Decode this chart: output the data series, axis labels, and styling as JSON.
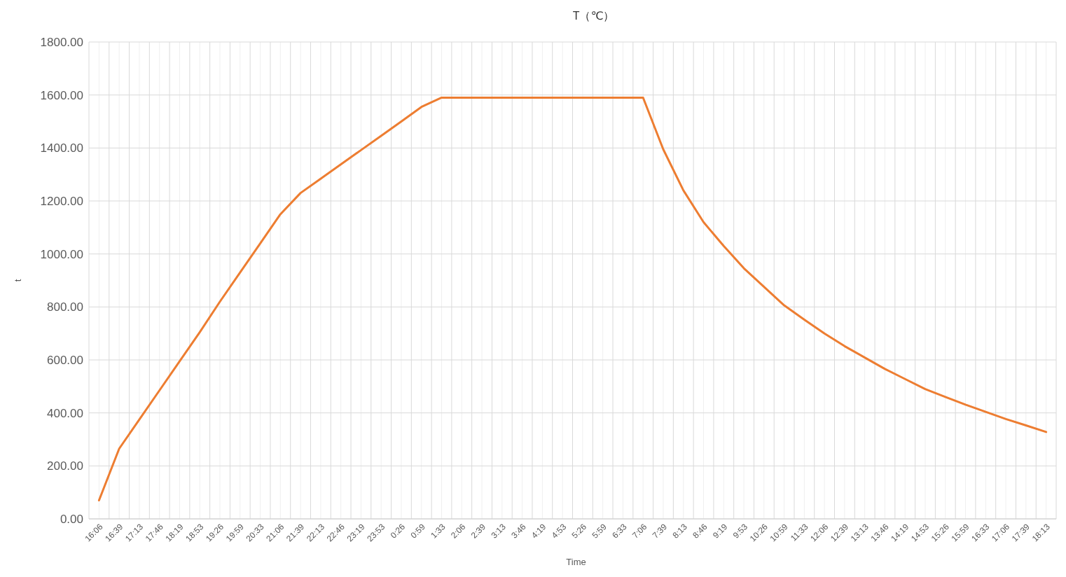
{
  "chart_data": {
    "type": "line",
    "title": "T（℃）",
    "xlabel": "Time",
    "ylabel": "t",
    "categories": [
      "16:06",
      "16:39",
      "17:13",
      "17:46",
      "18:19",
      "18:53",
      "19:26",
      "19:59",
      "20:33",
      "21:06",
      "21:39",
      "22:13",
      "22:46",
      "23:19",
      "23:53",
      "0:26",
      "0:59",
      "1:33",
      "2:06",
      "2:39",
      "3:13",
      "3:46",
      "4:19",
      "4:53",
      "5:26",
      "5:59",
      "6:33",
      "7:06",
      "7:39",
      "8:13",
      "8:46",
      "9:19",
      "9:53",
      "10:26",
      "10:59",
      "11:33",
      "12:06",
      "12:39",
      "13:13",
      "13:46",
      "14:19",
      "14:53",
      "15:26",
      "15:59",
      "16:33",
      "17:06",
      "17:39",
      "18:13"
    ],
    "series": [
      {
        "color": "#ed7d31",
        "values": [
          70,
          265,
          375,
          485,
          595,
          705,
          820,
          930,
          1040,
          1150,
          1230,
          1284,
          1338,
          1392,
          1446,
          1500,
          1555,
          1590,
          1590,
          1590,
          1590,
          1590,
          1590,
          1590,
          1590,
          1590,
          1590,
          1590,
          1395,
          1240,
          1120,
          1030,
          946,
          876,
          806,
          752,
          700,
          652,
          609,
          566,
          528,
          490,
          460,
          431,
          404,
          377,
          353,
          328
        ]
      }
    ],
    "ylim": [
      0,
      1800
    ],
    "yticks": [
      {
        "value": 0,
        "label": "0.00"
      },
      {
        "value": 200,
        "label": "200.00"
      },
      {
        "value": 400,
        "label": "400.00"
      },
      {
        "value": 600,
        "label": "600.00"
      },
      {
        "value": 800,
        "label": "800.00"
      },
      {
        "value": 1000,
        "label": "1000.00"
      },
      {
        "value": 1200,
        "label": "1200.00"
      },
      {
        "value": 1400,
        "label": "1400.00"
      },
      {
        "value": 1600,
        "label": "1600.00"
      },
      {
        "value": 1800,
        "label": "1800.00"
      }
    ],
    "grid": true,
    "marker": "none",
    "line_style": "solid"
  }
}
